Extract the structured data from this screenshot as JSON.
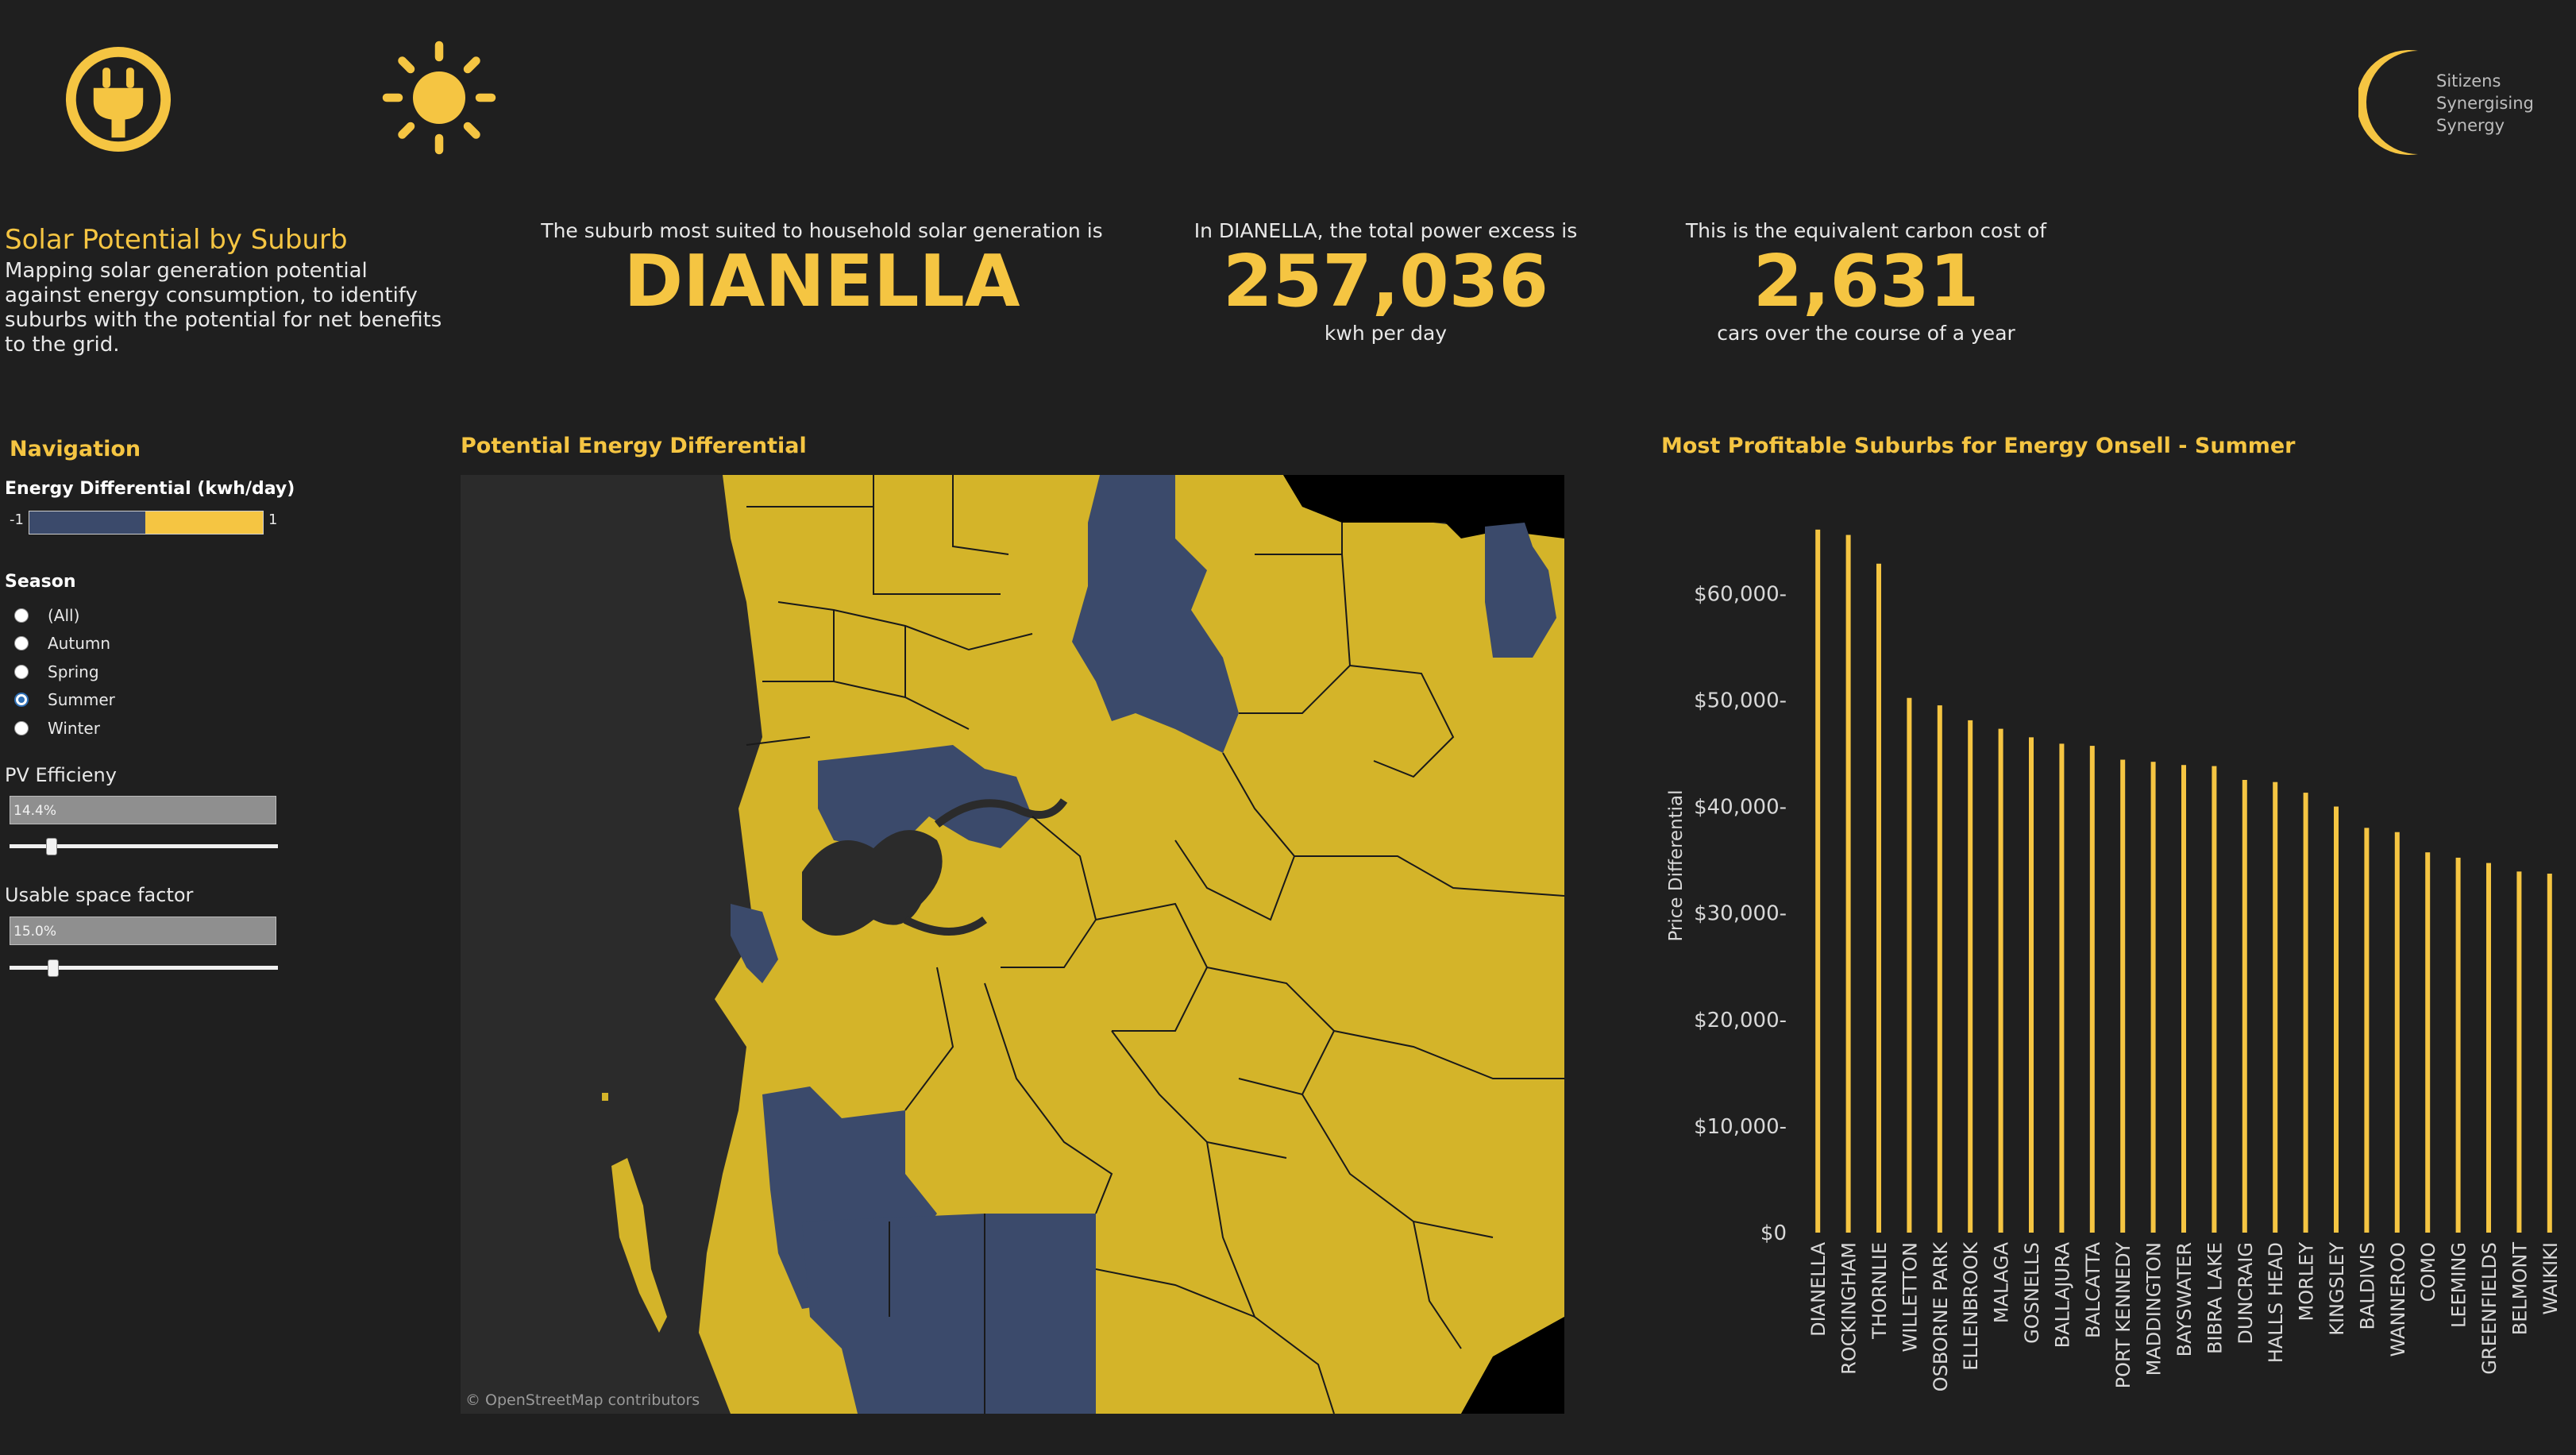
{
  "header": {
    "icons": [
      "plug-icon",
      "sun-icon"
    ],
    "logo_lines": [
      "Sitizens",
      "Synergising",
      "Synergy"
    ]
  },
  "title": "Solar Potential by Suburb",
  "subtitle": "Mapping solar generation potential against energy consumption, to identify suburbs with the potential for net benefits to the grid.",
  "kpis": {
    "suburb": {
      "caption": "The suburb most suited to household solar generation is",
      "value": "DIANELLA"
    },
    "excess": {
      "caption": "In DIANELLA, the total power excess is",
      "value": "257,036",
      "unit": "kwh per day"
    },
    "carbon": {
      "caption": "This is the equivalent carbon cost of",
      "value": "2,631",
      "unit": "cars over the course of a year"
    }
  },
  "navigation": {
    "title": "Navigation",
    "legend": {
      "title": "Energy Differential (kwh/day)",
      "min": "-1",
      "max": "1",
      "neg_color": "#3b4a6b",
      "pos_color": "#f5c542"
    },
    "season": {
      "title": "Season",
      "options": [
        "(All)",
        "Autumn",
        "Spring",
        "Summer",
        "Winter"
      ],
      "selected": "Summer"
    },
    "pv_efficiency": {
      "label": "PV Efficieny",
      "value": "14.4%"
    },
    "usable_space": {
      "label": "Usable space factor",
      "value": "15.0%"
    }
  },
  "map": {
    "title": "Potential Energy Differential",
    "credit": "© OpenStreetMap contributors",
    "colors": {
      "positive": "#d4b429",
      "negative": "#3b4a6b",
      "land": "#2b2b2b",
      "none": "#000000"
    }
  },
  "chart_data": {
    "type": "bar",
    "title": "Most Profitable Suburbs for Energy Onsell -  Summer",
    "ylabel": "Price Differential",
    "xlabel": "",
    "ylim": [
      0,
      68000
    ],
    "yticks": [
      0,
      10000,
      20000,
      30000,
      40000,
      50000,
      60000
    ],
    "ytick_labels": [
      "$0",
      "$10,000-",
      "$20,000-",
      "$30,000-",
      "$40,000-",
      "$50,000-",
      "$60,000-"
    ],
    "color": "#f5c542",
    "categories": [
      "DIANELLA",
      "ROCKINGHAM",
      "THORNLIE",
      "WILLETTON",
      "OSBORNE PARK",
      "ELLENBROOK",
      "MALAGA",
      "GOSNELLS",
      "BALLAJURA",
      "BALCATTA",
      "PORT KENNEDY",
      "MADDINGTON",
      "BAYSWATER",
      "BIBRA LAKE",
      "DUNCRAIG",
      "HALLS HEAD",
      "MORLEY",
      "KINGSLEY",
      "BALDIVIS",
      "WANNEROO",
      "COMO",
      "LEEMING",
      "GREENFIELDS",
      "BELMONT",
      "WAIKIKI"
    ],
    "values": [
      66000,
      65500,
      62800,
      50200,
      49500,
      48100,
      47300,
      46500,
      45900,
      45700,
      44400,
      44200,
      43900,
      43800,
      42500,
      42300,
      41300,
      40000,
      38000,
      37600,
      35700,
      35200,
      34700,
      33900,
      33700
    ]
  }
}
